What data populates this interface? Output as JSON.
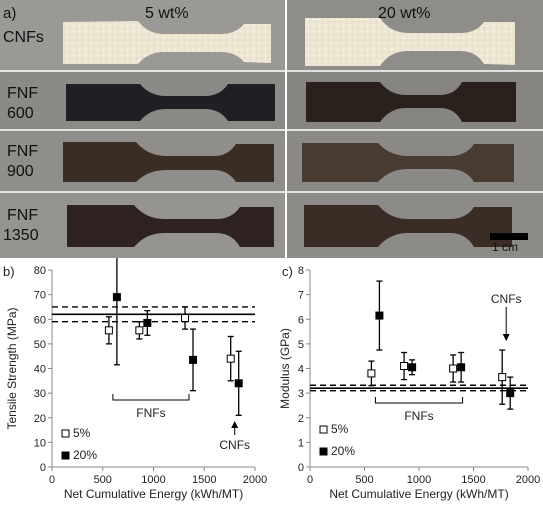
{
  "photo": {
    "panel_label": "a)",
    "col_headers": [
      "5 wt%",
      "20 wt%"
    ],
    "row_labels": [
      {
        "lines": [
          "CNFs"
        ]
      },
      {
        "lines": [
          "FNF",
          "600"
        ]
      },
      {
        "lines": [
          "FNF",
          "900"
        ]
      },
      {
        "lines": [
          "FNF",
          "1350"
        ]
      }
    ],
    "scale_bar": "1 cm",
    "colors": {
      "cnf": "#ece6d2",
      "fnf600": "#1f1f24",
      "fnf900": "#3a2d24",
      "fnf1350": "#2e2320",
      "background": "#8f8d89"
    }
  },
  "chart_data": [
    {
      "type": "scatter",
      "panel_label": "b)",
      "xlabel": "Net Cumulative Energy (kWh/MT)",
      "ylabel": "Tensile Strength (MPa)",
      "xlim": [
        0,
        2000
      ],
      "ylim": [
        0,
        80
      ],
      "xticks": [
        0,
        500,
        1000,
        1500,
        2000
      ],
      "yticks": [
        0,
        10,
        20,
        30,
        40,
        50,
        60,
        70,
        80
      ],
      "series": [
        {
          "name": "5%",
          "marker": "open-square",
          "x": [
            600,
            900,
            1350,
            1800
          ],
          "y": [
            55.5,
            55.5,
            60.5,
            44
          ],
          "err": [
            5.5,
            3.5,
            4.5,
            9
          ]
        },
        {
          "name": "20%",
          "marker": "filled-square",
          "x": [
            600,
            900,
            1350,
            1800
          ],
          "y": [
            69,
            58.5,
            43.5,
            34
          ],
          "err": [
            27.5,
            5,
            12.5,
            13
          ]
        }
      ],
      "reference": {
        "mean": 62,
        "band": [
          59,
          65
        ]
      },
      "annotations": [
        {
          "text": "FNFs",
          "bracket": [
            600,
            1350
          ]
        },
        {
          "text": "CNFs",
          "arrow_x": 1800
        }
      ]
    },
    {
      "type": "scatter",
      "panel_label": "c)",
      "xlabel": "Net Cumulative Energy (kWh/MT)",
      "ylabel": "Modulus (GPa)",
      "xlim": [
        0,
        2000
      ],
      "ylim": [
        0,
        8
      ],
      "xticks": [
        0,
        500,
        1000,
        1500,
        2000
      ],
      "yticks": [
        0,
        1,
        2,
        3,
        4,
        5,
        6,
        7,
        8
      ],
      "series": [
        {
          "name": "5%",
          "marker": "open-square",
          "x": [
            600,
            900,
            1350,
            1800
          ],
          "y": [
            3.8,
            4.1,
            4.0,
            3.65
          ],
          "err": [
            0.5,
            0.55,
            0.55,
            1.1
          ]
        },
        {
          "name": "20%",
          "marker": "filled-square",
          "x": [
            600,
            900,
            1350,
            1800
          ],
          "y": [
            6.15,
            4.05,
            4.05,
            3.0
          ],
          "err": [
            1.4,
            0.3,
            0.6,
            0.65
          ]
        }
      ],
      "reference": {
        "mean": 3.2,
        "band": [
          3.1,
          3.32
        ]
      },
      "annotations": [
        {
          "text": "FNFs",
          "bracket": [
            600,
            1400
          ]
        },
        {
          "text": "CNFs",
          "arrow_x": 1800
        }
      ]
    }
  ]
}
